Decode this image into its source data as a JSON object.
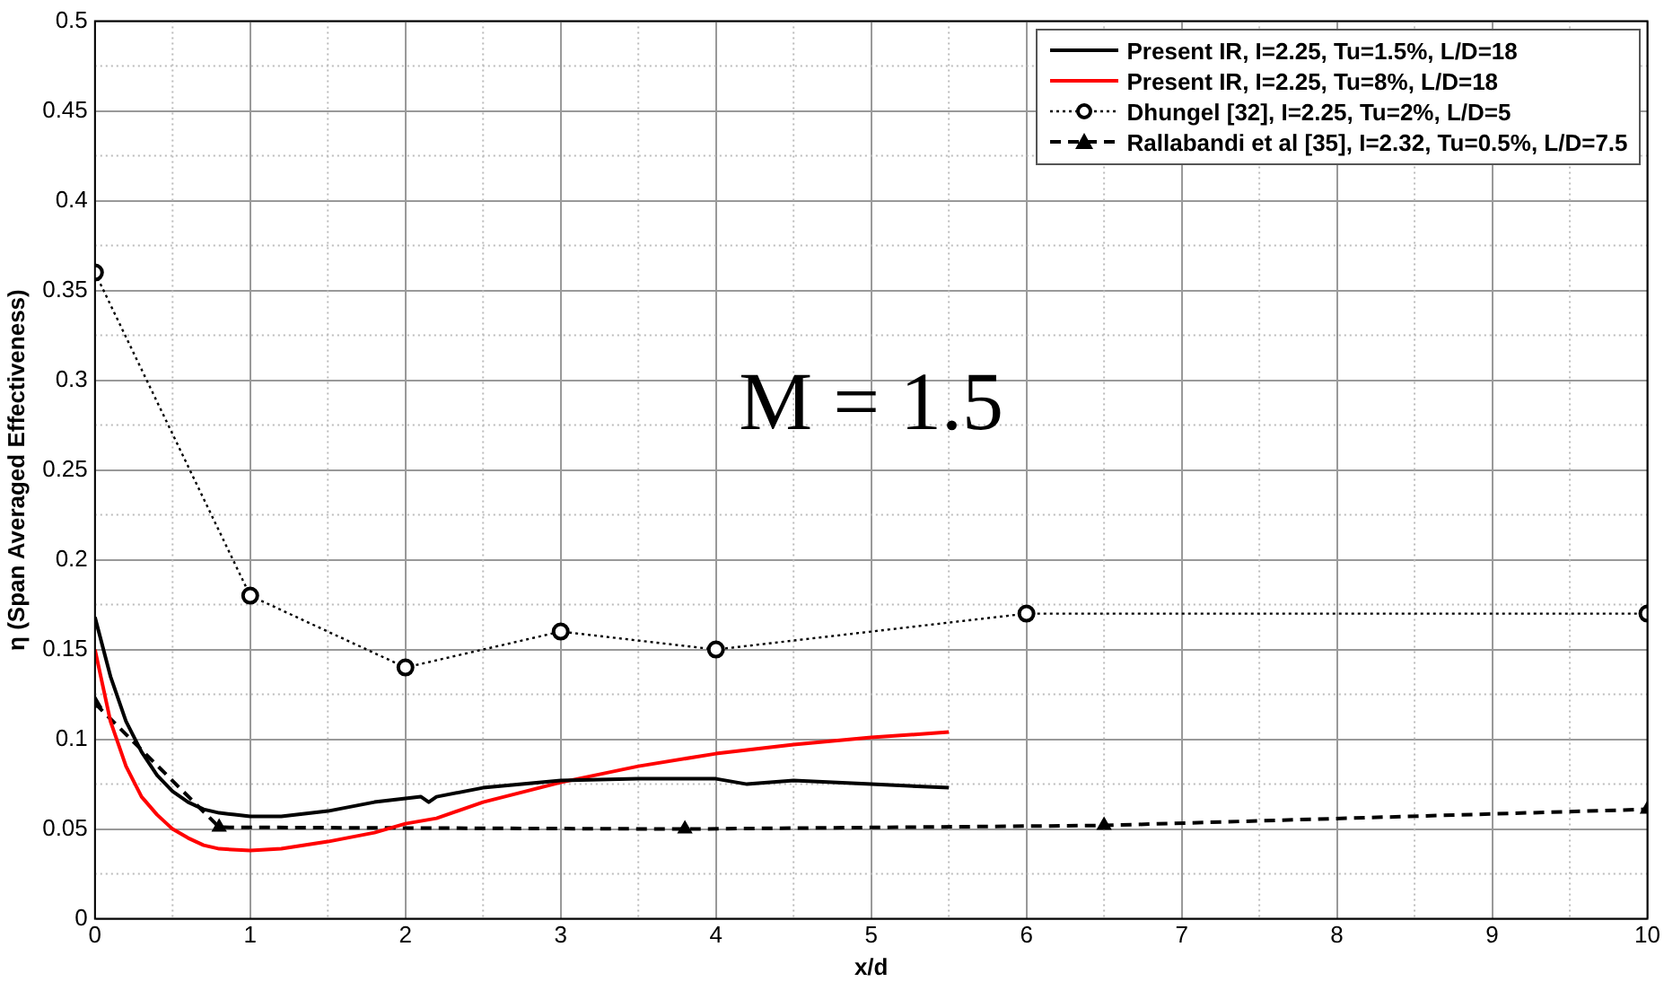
{
  "chart_data": {
    "type": "line",
    "xlabel": "x/d",
    "ylabel": "η (Span Averaged Effectiveness)",
    "annotations": [
      "M = 1.5"
    ],
    "xlim": [
      0,
      10
    ],
    "xticks": [
      0,
      1,
      2,
      3,
      4,
      5,
      6,
      7,
      8,
      9,
      10
    ],
    "ylim": [
      0,
      0.5
    ],
    "yticks": [
      0,
      0.05,
      0.1,
      0.15,
      0.2,
      0.25,
      0.3,
      0.35,
      0.4,
      0.45,
      0.5
    ],
    "grid": true,
    "legend": "top right",
    "series": [
      {
        "name": "Present IR, I=2.25, Tu=1.5%, L/D=18",
        "color": "#000000",
        "marker": "none",
        "line_style": "solid",
        "x": [
          0,
          0.1,
          0.2,
          0.3,
          0.4,
          0.5,
          0.6,
          0.7,
          0.8,
          0.9,
          1.0,
          1.2,
          1.5,
          1.8,
          2.0,
          2.1,
          2.15,
          2.2,
          2.5,
          3.0,
          3.5,
          4.0,
          4.2,
          4.5,
          5.0,
          5.5
        ],
        "values": [
          0.168,
          0.135,
          0.11,
          0.093,
          0.08,
          0.071,
          0.065,
          0.061,
          0.059,
          0.058,
          0.057,
          0.057,
          0.06,
          0.065,
          0.067,
          0.068,
          0.065,
          0.068,
          0.073,
          0.077,
          0.078,
          0.078,
          0.075,
          0.077,
          0.075,
          0.073
        ]
      },
      {
        "name": "Present IR, I=2.25, Tu=8%, L/D=18",
        "color": "#ff0000",
        "marker": "none",
        "line_style": "solid",
        "x": [
          0,
          0.1,
          0.2,
          0.3,
          0.4,
          0.5,
          0.6,
          0.7,
          0.8,
          1.0,
          1.2,
          1.5,
          1.8,
          2.0,
          2.2,
          2.5,
          3.0,
          3.5,
          4.0,
          4.5,
          5.0,
          5.5
        ],
        "values": [
          0.15,
          0.11,
          0.085,
          0.068,
          0.058,
          0.05,
          0.045,
          0.041,
          0.039,
          0.038,
          0.039,
          0.043,
          0.048,
          0.053,
          0.056,
          0.065,
          0.076,
          0.085,
          0.092,
          0.097,
          0.101,
          0.104
        ]
      },
      {
        "name": "Dhungel [32], I=2.25, Tu=2%, L/D=5",
        "color": "#000000",
        "marker": "circle",
        "line_style": "dotted",
        "x": [
          0,
          1,
          2,
          3,
          4,
          6,
          10
        ],
        "values": [
          0.36,
          0.18,
          0.14,
          0.16,
          0.15,
          0.17,
          0.17
        ]
      },
      {
        "name": "Rallabandi et al [35], I=2.32, Tu=0.5%, L/D=7.5",
        "color": "#000000",
        "marker": "triangle",
        "line_style": "dashed",
        "x": [
          0,
          0.8,
          3.8,
          6.5,
          10
        ],
        "values": [
          0.12,
          0.051,
          0.05,
          0.052,
          0.061
        ]
      }
    ]
  }
}
